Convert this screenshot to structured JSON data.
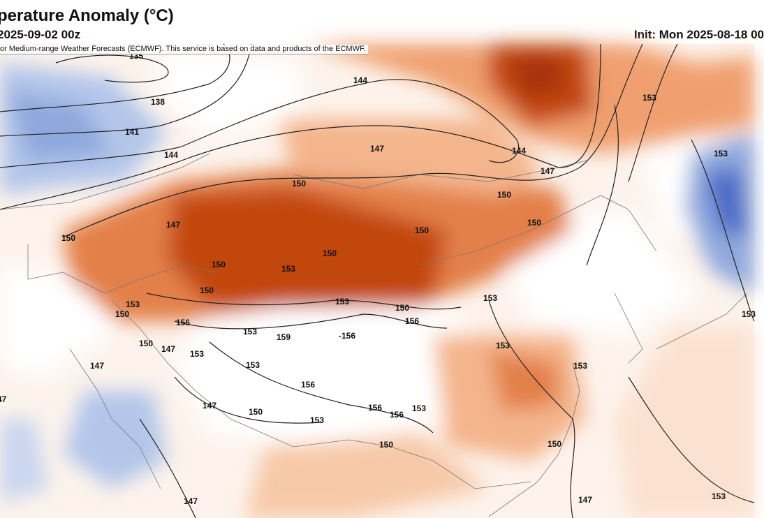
{
  "header": {
    "title": "perature Anomaly (°C)",
    "valid_time": "2025-09-02 00z",
    "init_time": "Init: Mon 2025-08-18 00"
  },
  "map": {
    "credit": "or Medium-range Weather Forecasts (ECMWF). This service is based on data and products of the ECMWF.",
    "colors": {
      "strong_warm": "#c2460f",
      "warm": "#e38048",
      "mild_warm": "#f4b58c",
      "slight_warm": "#fbe2d0",
      "neutral": "#ffffff",
      "slight_cool": "#c9d6ef",
      "cool": "#8fa8dd",
      "strong_cool": "#4a68c6",
      "contour": "#222222",
      "border": "#666666"
    },
    "contour_labels": [
      "135",
      "138",
      "141",
      "144",
      "144",
      "147",
      "144",
      "147",
      "153",
      "153",
      "150",
      "150",
      "150",
      "150",
      "147",
      "150",
      "150",
      "153",
      "150",
      "150",
      "153",
      "150",
      "153",
      "150",
      "153",
      "156",
      "153",
      "159",
      "-156",
      "156",
      "150",
      "147",
      "153",
      "153",
      "147",
      "153",
      "156",
      "153",
      "147",
      "150",
      "153",
      "156",
      "156",
      "153",
      "150",
      "150",
      "147",
      "147",
      "153",
      "153",
      "47"
    ]
  }
}
